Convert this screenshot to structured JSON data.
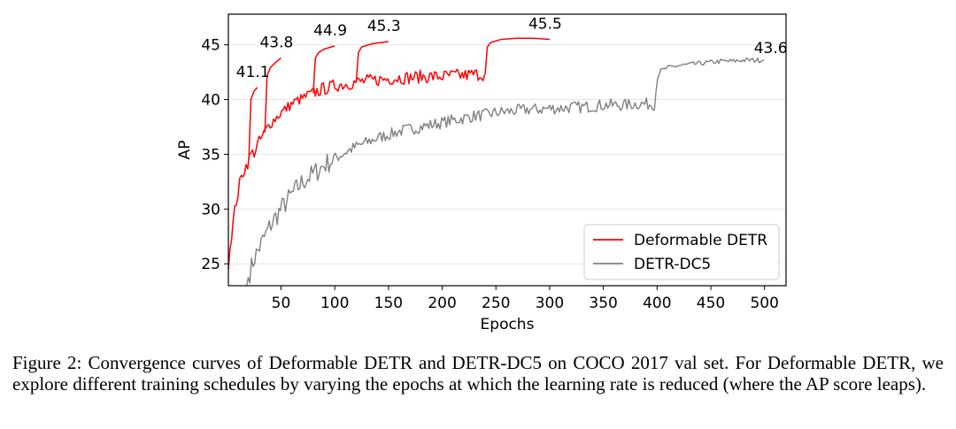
{
  "caption": "Figure 2: Convergence curves of Deformable DETR and DETR-DC5 on COCO 2017 val set. For Deformable DETR, we explore different training schedules by varying the epochs at which the learning rate is reduced (where the AP score leaps).",
  "chart_data": {
    "type": "line",
    "title": "",
    "xlabel": "Epochs",
    "ylabel": "AP",
    "xlim": [
      1,
      520
    ],
    "ylim": [
      23,
      47.8
    ],
    "xticks": [
      50,
      100,
      150,
      200,
      250,
      300,
      350,
      400,
      450,
      500
    ],
    "yticks": [
      25,
      30,
      35,
      40,
      45
    ],
    "grid": "horizontal",
    "legend_position": "lower-right",
    "series": [
      {
        "name": "Deformable DETR",
        "color": "#ff0000",
        "x": [
          1,
          3,
          5,
          8,
          10,
          12,
          15,
          18,
          20,
          22,
          25,
          28,
          30,
          32,
          35,
          38,
          40,
          45,
          50,
          55,
          60,
          65,
          70,
          75,
          80,
          85,
          90,
          95,
          100,
          110,
          120,
          130,
          140,
          150,
          160,
          170,
          180,
          190,
          200,
          210,
          220,
          230,
          240
        ],
        "y": [
          24.5,
          27.0,
          28.5,
          30.5,
          31.5,
          32.5,
          33.5,
          34.0,
          34.5,
          35.0,
          35.2,
          35.8,
          36.2,
          36.5,
          37.0,
          37.5,
          37.8,
          38.3,
          38.8,
          39.2,
          39.6,
          39.9,
          40.1,
          40.4,
          40.6,
          40.8,
          41.0,
          41.1,
          41.3,
          41.4,
          41.6,
          41.7,
          41.8,
          41.9,
          42.0,
          42.0,
          42.1,
          42.1,
          42.1,
          42.2,
          42.2,
          42.3,
          42.3
        ],
        "branches": [
          {
            "x": [
              20,
              22,
              25,
              28
            ],
            "y": [
              34.5,
              40.0,
              40.8,
              41.1
            ],
            "end_label": "41.1"
          },
          {
            "x": [
              35,
              37,
              40,
              45,
              50
            ],
            "y": [
              37.0,
              42.2,
              42.9,
              43.4,
              43.8
            ],
            "end_label": "43.8"
          },
          {
            "x": [
              80,
              82,
              85,
              90,
              100
            ],
            "y": [
              40.6,
              43.8,
              44.3,
              44.6,
              44.9
            ],
            "end_label": "44.9"
          },
          {
            "x": [
              120,
              122,
              125,
              135,
              150
            ],
            "y": [
              41.6,
              44.3,
              44.8,
              45.1,
              45.3
            ],
            "end_label": "45.3"
          },
          {
            "x": [
              240,
              242,
              245,
              255,
              270,
              285,
              300
            ],
            "y": [
              42.3,
              44.8,
              45.2,
              45.5,
              45.6,
              45.6,
              45.5
            ],
            "end_label": "45.5"
          }
        ]
      },
      {
        "name": "DETR-DC5",
        "color": "#808080",
        "x": [
          18,
          20,
          22,
          25,
          30,
          35,
          40,
          50,
          60,
          70,
          80,
          90,
          100,
          110,
          120,
          130,
          140,
          150,
          160,
          170,
          180,
          190,
          200,
          210,
          220,
          230,
          240,
          250,
          260,
          270,
          280,
          290,
          300,
          310,
          320,
          330,
          340,
          350,
          360,
          370,
          380,
          390,
          398,
          400,
          403,
          410,
          420,
          430,
          440,
          450,
          460,
          470,
          480,
          490,
          500
        ],
        "y": [
          23.0,
          24.0,
          24.5,
          25.5,
          26.5,
          27.5,
          28.5,
          30.0,
          31.3,
          32.5,
          33.2,
          34.0,
          34.6,
          35.2,
          35.7,
          36.1,
          36.5,
          36.8,
          37.1,
          37.3,
          37.5,
          37.7,
          37.9,
          38.1,
          38.3,
          38.5,
          38.6,
          38.8,
          38.9,
          39.0,
          39.1,
          39.1,
          39.2,
          39.2,
          39.3,
          39.3,
          39.4,
          39.5,
          39.5,
          39.5,
          39.6,
          39.6,
          39.6,
          42.0,
          42.6,
          42.9,
          43.1,
          43.2,
          43.3,
          43.4,
          43.5,
          43.5,
          43.6,
          43.6,
          43.6
        ],
        "end_label": "43.6"
      }
    ]
  }
}
